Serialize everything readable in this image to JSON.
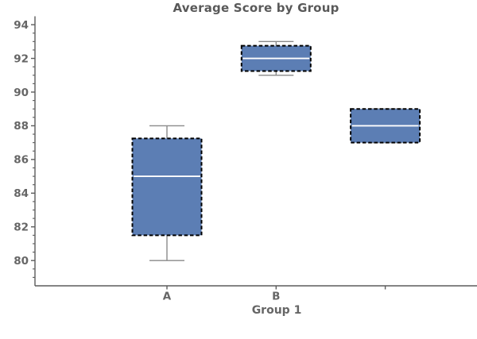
{
  "chart_data": {
    "type": "box",
    "title": "Average Score by Group",
    "xlabel": "Group 1",
    "ylabel": "",
    "categories": [
      "A",
      "B",
      ""
    ],
    "series": [
      {
        "label": "A",
        "whislo": 80,
        "q1": 81.5,
        "med": 85,
        "q3": 87.25,
        "whishi": 88
      },
      {
        "label": "B",
        "whislo": 91,
        "q1": 91.25,
        "med": 92,
        "q3": 92.75,
        "whishi": 93
      },
      {
        "label": "",
        "whislo": 87,
        "q1": 87,
        "med": 88,
        "q3": 89,
        "whishi": 89
      }
    ],
    "yticks": [
      80,
      82,
      84,
      86,
      88,
      90,
      92,
      94
    ],
    "y_minor_step": 0.5,
    "ylim": [
      78.5,
      94.5
    ],
    "grid": false,
    "legend": false,
    "colors": {
      "box_fill": "#5c7eb4",
      "box_border": "#000000",
      "median": "#ffffff",
      "whisker": "#8a8a8a",
      "axis": "#5c5c5c",
      "text": "#666666",
      "title": "#595959",
      "background": "#ffffff"
    }
  }
}
